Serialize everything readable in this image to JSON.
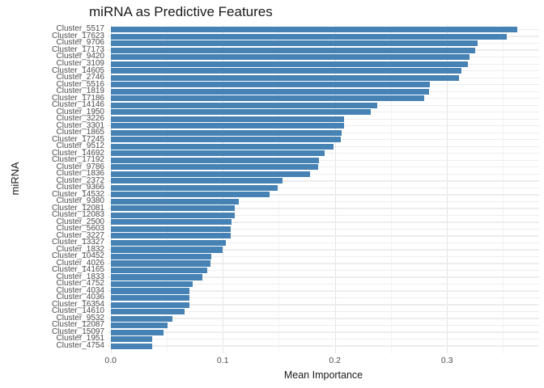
{
  "colors": {
    "bar": "#4682b4",
    "grid_major": "#e5e5e5",
    "grid_minor": "#f2f2f2",
    "grid_horizontal": "#ededed",
    "axis_text": "#4d4d4d",
    "title_text": "#1a1a1a",
    "background": "#ffffff"
  },
  "chart_data": {
    "type": "bar",
    "orientation": "horizontal",
    "title": "miRNA as Predictive Features",
    "xlabel": "Mean Importance",
    "ylabel": "miRNA",
    "xlim": [
      0,
      0.382
    ],
    "x_major_ticks": [
      0.0,
      0.1,
      0.2,
      0.3
    ],
    "x_tick_labels": [
      "0.0",
      "0.1",
      "0.2",
      "0.3"
    ],
    "x_minor_ticks": [
      0.05,
      0.15,
      0.25,
      0.35
    ],
    "grid": true,
    "legend": false,
    "categories": [
      "Cluster_5517",
      "Cluster_17623",
      "Cluster_9706",
      "Cluster_17173",
      "Cluster_9420",
      "Cluster_3109",
      "Cluster_14605",
      "Cluster_2746",
      "Cluster_5516",
      "Cluster_1819",
      "Cluster_17186",
      "Cluster_14146",
      "Cluster_1950",
      "Cluster_3226",
      "Cluster_3301",
      "Cluster_1865",
      "Cluster_17245",
      "Cluster_9512",
      "Cluster_14692",
      "Cluster_17192",
      "Cluster_9786",
      "Cluster_1836",
      "Cluster_2372",
      "Cluster_9366",
      "Cluster_14532",
      "Cluster_9380",
      "Cluster_12081",
      "Cluster_12083",
      "Cluster_2500",
      "Cluster_5603",
      "Cluster_3227",
      "Cluster_13327",
      "Cluster_1832",
      "Cluster_10452",
      "Cluster_4026",
      "Cluster_14165",
      "Cluster_1833",
      "Cluster_4752",
      "Cluster_4034",
      "Cluster_4036",
      "Cluster_16354",
      "Cluster_14610",
      "Cluster_9532",
      "Cluster_12087",
      "Cluster_15097",
      "Cluster_1951",
      "Cluster_4754"
    ],
    "values": [
      0.363,
      0.353,
      0.327,
      0.325,
      0.32,
      0.319,
      0.313,
      0.311,
      0.285,
      0.284,
      0.28,
      0.238,
      0.232,
      0.208,
      0.208,
      0.206,
      0.205,
      0.199,
      0.191,
      0.186,
      0.185,
      0.178,
      0.153,
      0.149,
      0.142,
      0.114,
      0.111,
      0.111,
      0.108,
      0.107,
      0.107,
      0.103,
      0.1,
      0.09,
      0.089,
      0.086,
      0.082,
      0.073,
      0.07,
      0.07,
      0.07,
      0.066,
      0.055,
      0.051,
      0.047,
      0.037,
      0.037
    ]
  }
}
